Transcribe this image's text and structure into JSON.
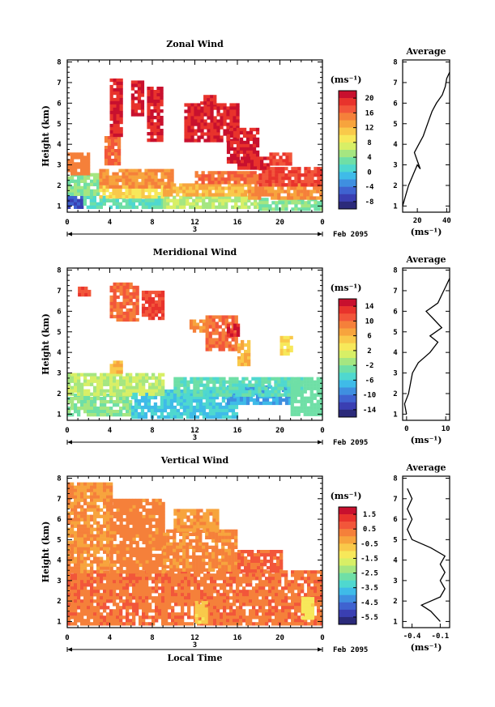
{
  "chart_data": [
    {
      "type": "heatmap",
      "title": "Zonal Wind",
      "ylabel": "Height (km)",
      "xlabel": "",
      "date_label": "Feb 2095",
      "day_label": "3",
      "x_ticks": [
        "0",
        "4",
        "8",
        "12",
        "16",
        "20",
        "0"
      ],
      "y_ticks": [
        "1",
        "2",
        "3",
        "4",
        "5",
        "6",
        "7",
        "8"
      ],
      "colorbar": {
        "unit": "(ms⁻¹)",
        "ticks": [
          "20",
          "16",
          "12",
          "8",
          "4",
          "0",
          "-4",
          "-8"
        ],
        "vmin": -10,
        "vmax": 22
      },
      "average": {
        "title": "Average",
        "unit": "(ms⁻¹)",
        "x_ticks": [
          "20",
          "40"
        ],
        "xlim": [
          10,
          42
        ],
        "profile": [
          [
            10,
            1.0
          ],
          [
            12,
            1.5
          ],
          [
            14,
            2.0
          ],
          [
            17,
            2.5
          ],
          [
            20,
            3.0
          ],
          [
            22,
            2.8
          ],
          [
            20,
            3.2
          ],
          [
            18,
            3.6
          ],
          [
            21,
            4.0
          ],
          [
            24,
            4.4
          ],
          [
            26,
            4.8
          ],
          [
            28,
            5.2
          ],
          [
            30,
            5.6
          ],
          [
            33,
            6.0
          ],
          [
            37,
            6.4
          ],
          [
            39,
            6.8
          ],
          [
            40,
            7.2
          ],
          [
            42,
            7.5
          ]
        ]
      },
      "regions": [
        {
          "value": -6,
          "x0": 0,
          "x1": 1.5,
          "y0": 0.9,
          "y1": 1.5
        },
        {
          "value": 2,
          "x0": 1.5,
          "x1": 9,
          "y0": 0.9,
          "y1": 1.5
        },
        {
          "value": 6,
          "x0": 9,
          "x1": 18,
          "y0": 0.9,
          "y1": 1.5
        },
        {
          "value": 4,
          "x0": 18,
          "x1": 24,
          "y0": 0.9,
          "y1": 1.4
        },
        {
          "value": 4,
          "x0": 0,
          "x1": 3,
          "y0": 1.5,
          "y1": 2.6
        },
        {
          "value": 10,
          "x0": 3,
          "x1": 9,
          "y0": 1.5,
          "y1": 2.0
        },
        {
          "value": 12,
          "x0": 9,
          "x1": 17,
          "y0": 1.5,
          "y1": 2.1
        },
        {
          "value": 14,
          "x0": 17,
          "x1": 24,
          "y0": 1.4,
          "y1": 2.1
        },
        {
          "value": 15,
          "x0": 0,
          "x1": 2,
          "y0": 2.6,
          "y1": 3.6
        },
        {
          "value": 14,
          "x0": 3,
          "x1": 10,
          "y0": 2.0,
          "y1": 2.8
        },
        {
          "value": 16,
          "x0": 12,
          "x1": 18,
          "y0": 2.1,
          "y1": 2.7
        },
        {
          "value": 18,
          "x0": 18,
          "x1": 24,
          "y0": 2.1,
          "y1": 2.9
        },
        {
          "value": 16,
          "x0": 3.5,
          "x1": 5,
          "y0": 3.0,
          "y1": 4.4
        },
        {
          "value": 20,
          "x0": 4,
          "x1": 5,
          "y0": 4.4,
          "y1": 7.2
        },
        {
          "value": 20,
          "x0": 6,
          "x1": 7,
          "y0": 5.4,
          "y1": 7.1
        },
        {
          "value": 20,
          "x0": 7.5,
          "x1": 9,
          "y0": 4.2,
          "y1": 6.8
        },
        {
          "value": 20,
          "x0": 11,
          "x1": 16,
          "y0": 4.2,
          "y1": 6.0
        },
        {
          "value": 20,
          "x0": 12.5,
          "x1": 14,
          "y0": 6.0,
          "y1": 6.4
        },
        {
          "value": 20,
          "x0": 15,
          "x1": 18,
          "y0": 3.2,
          "y1": 4.8
        },
        {
          "value": 20,
          "x0": 16,
          "x1": 19,
          "y0": 2.8,
          "y1": 3.4
        },
        {
          "value": 18,
          "x0": 19,
          "x1": 21,
          "y0": 3.0,
          "y1": 3.6
        }
      ]
    },
    {
      "type": "heatmap",
      "title": "Meridional Wind",
      "ylabel": "Height (km)",
      "xlabel": "",
      "date_label": "Feb 2095",
      "day_label": "3",
      "x_ticks": [
        "0",
        "4",
        "8",
        "12",
        "16",
        "20",
        "0"
      ],
      "y_ticks": [
        "1",
        "2",
        "3",
        "4",
        "5",
        "6",
        "7",
        "8"
      ],
      "colorbar": {
        "unit": "(ms⁻¹)",
        "ticks": [
          "14",
          "10",
          "6",
          "2",
          "-2",
          "-6",
          "-10",
          "-14"
        ],
        "vmin": -16,
        "vmax": 16
      },
      "average": {
        "title": "Average",
        "unit": "(ms⁻¹)",
        "x_ticks": [
          "0",
          "10"
        ],
        "xlim": [
          -1,
          11
        ],
        "profile": [
          [
            0,
            1.0
          ],
          [
            -0.5,
            1.5
          ],
          [
            0.5,
            2.0
          ],
          [
            1,
            2.5
          ],
          [
            1.5,
            3.0
          ],
          [
            3,
            3.5
          ],
          [
            6,
            4.0
          ],
          [
            8,
            4.5
          ],
          [
            6,
            4.8
          ],
          [
            9,
            5.2
          ],
          [
            7,
            5.6
          ],
          [
            5,
            6.0
          ],
          [
            8,
            6.4
          ],
          [
            9,
            6.8
          ],
          [
            10,
            7.2
          ],
          [
            11,
            7.6
          ]
        ]
      },
      "regions": [
        {
          "value": -2,
          "x0": 0,
          "x1": 6,
          "y0": 0.9,
          "y1": 2.0
        },
        {
          "value": -6,
          "x0": 6,
          "x1": 16,
          "y0": 0.9,
          "y1": 2.2
        },
        {
          "value": -8,
          "x0": 15,
          "x1": 21,
          "y0": 1.6,
          "y1": 2.4
        },
        {
          "value": -4,
          "x0": 10,
          "x1": 22,
          "y0": 2.0,
          "y1": 2.8
        },
        {
          "value": -3,
          "x0": 21,
          "x1": 24,
          "y0": 1.0,
          "y1": 2.8
        },
        {
          "value": 0,
          "x0": 0,
          "x1": 9,
          "y0": 2.0,
          "y1": 3.0
        },
        {
          "value": 6,
          "x0": 4,
          "x1": 5,
          "y0": 3.0,
          "y1": 3.6
        },
        {
          "value": 12,
          "x0": 1,
          "x1": 2,
          "y0": 6.8,
          "y1": 7.2
        },
        {
          "value": 10,
          "x0": 4,
          "x1": 6.5,
          "y0": 5.6,
          "y1": 7.4
        },
        {
          "value": 12,
          "x0": 7,
          "x1": 9,
          "y0": 5.6,
          "y1": 7.0
        },
        {
          "value": 8,
          "x0": 11.5,
          "x1": 13,
          "y0": 5.0,
          "y1": 5.6
        },
        {
          "value": 10,
          "x0": 13,
          "x1": 16,
          "y0": 4.2,
          "y1": 5.8
        },
        {
          "value": 14,
          "x0": 15,
          "x1": 16,
          "y0": 4.8,
          "y1": 5.4
        },
        {
          "value": 6,
          "x0": 16,
          "x1": 17,
          "y0": 3.4,
          "y1": 4.6
        },
        {
          "value": 4,
          "x0": 20,
          "x1": 21,
          "y0": 4.0,
          "y1": 4.8
        }
      ]
    },
    {
      "type": "heatmap",
      "title": "Vertical Wind",
      "ylabel": "Height (km)",
      "xlabel": "Local Time",
      "date_label": "Feb 2095",
      "day_label": "3",
      "x_ticks": [
        "0",
        "4",
        "8",
        "12",
        "16",
        "20",
        "0"
      ],
      "y_ticks": [
        "1",
        "2",
        "3",
        "4",
        "5",
        "6",
        "7",
        "8"
      ],
      "colorbar": {
        "unit": "(ms⁻¹)",
        "ticks": [
          "1.5",
          "0.5",
          "-0.5",
          "-1.5",
          "-2.5",
          "-3.5",
          "-4.5",
          "-5.5"
        ],
        "vmin": -6,
        "vmax": 2
      },
      "average": {
        "title": "Average",
        "unit": "(ms⁻¹)",
        "x_ticks": [
          "-0.4",
          "-0.1"
        ],
        "xlim": [
          -0.5,
          0.0
        ],
        "profile": [
          [
            -0.1,
            1.0
          ],
          [
            -0.2,
            1.5
          ],
          [
            -0.3,
            1.8
          ],
          [
            -0.1,
            2.2
          ],
          [
            -0.05,
            2.6
          ],
          [
            -0.1,
            3.0
          ],
          [
            -0.05,
            3.4
          ],
          [
            -0.1,
            3.8
          ],
          [
            -0.05,
            4.2
          ],
          [
            -0.2,
            4.6
          ],
          [
            -0.4,
            5.0
          ],
          [
            -0.45,
            5.5
          ],
          [
            -0.4,
            6.0
          ],
          [
            -0.45,
            6.5
          ],
          [
            -0.4,
            7.0
          ],
          [
            -0.45,
            7.5
          ]
        ]
      },
      "regions": [
        {
          "value": 0.4,
          "x0": 0,
          "x1": 24,
          "y0": 0.9,
          "y1": 3.5
        },
        {
          "value": 0.0,
          "x0": 0,
          "x1": 4,
          "y0": 3.5,
          "y1": 7.8
        },
        {
          "value": 0.2,
          "x0": 4,
          "x1": 9,
          "y0": 3.5,
          "y1": 7.0
        },
        {
          "value": 0.1,
          "x0": 9,
          "x1": 16,
          "y0": 3.5,
          "y1": 5.5
        },
        {
          "value": -0.1,
          "x0": 10,
          "x1": 14,
          "y0": 5.5,
          "y1": 6.5
        },
        {
          "value": 0.6,
          "x0": 16,
          "x1": 20,
          "y0": 3.5,
          "y1": 4.5
        },
        {
          "value": -0.8,
          "x0": 12,
          "x1": 13,
          "y0": 1.0,
          "y1": 2.0
        },
        {
          "value": -1.2,
          "x0": 22,
          "x1": 23,
          "y0": 1.2,
          "y1": 2.2
        }
      ]
    }
  ]
}
